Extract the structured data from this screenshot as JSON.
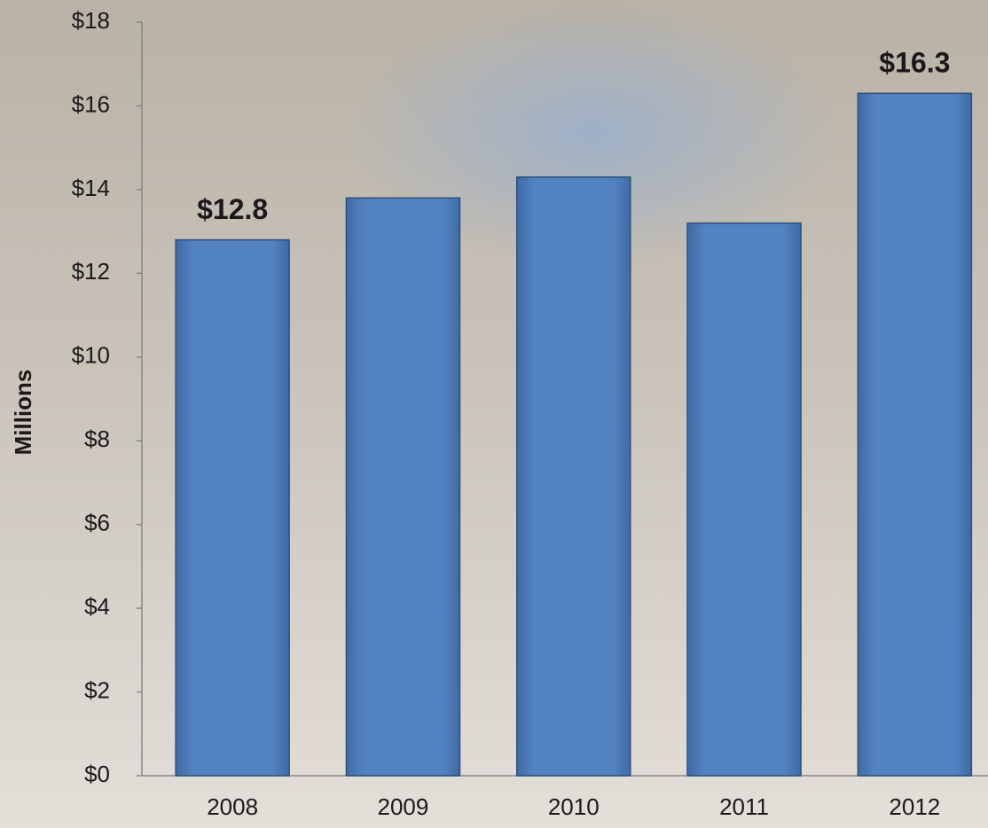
{
  "chart_data": {
    "type": "bar",
    "y_label": "Millions",
    "categories": [
      "2008",
      "2009",
      "2010",
      "2011",
      "2012"
    ],
    "values": [
      12.8,
      13.8,
      14.3,
      13.2,
      16.3
    ],
    "value_labels": [
      "$12.8",
      null,
      null,
      null,
      "$16.3"
    ],
    "color": "#4f7fbd",
    "ylim": [
      0,
      18
    ],
    "yticks": [
      {
        "value": 0,
        "label": "$0"
      },
      {
        "value": 2,
        "label": "$2"
      },
      {
        "value": 4,
        "label": "$4"
      },
      {
        "value": 6,
        "label": "$6"
      },
      {
        "value": 8,
        "label": "$8"
      },
      {
        "value": 10,
        "label": "$10"
      },
      {
        "value": 12,
        "label": "$12"
      },
      {
        "value": 14,
        "label": "$14"
      },
      {
        "value": 16,
        "label": "$16"
      },
      {
        "value": 18,
        "label": "$18"
      }
    ],
    "grid": false
  }
}
